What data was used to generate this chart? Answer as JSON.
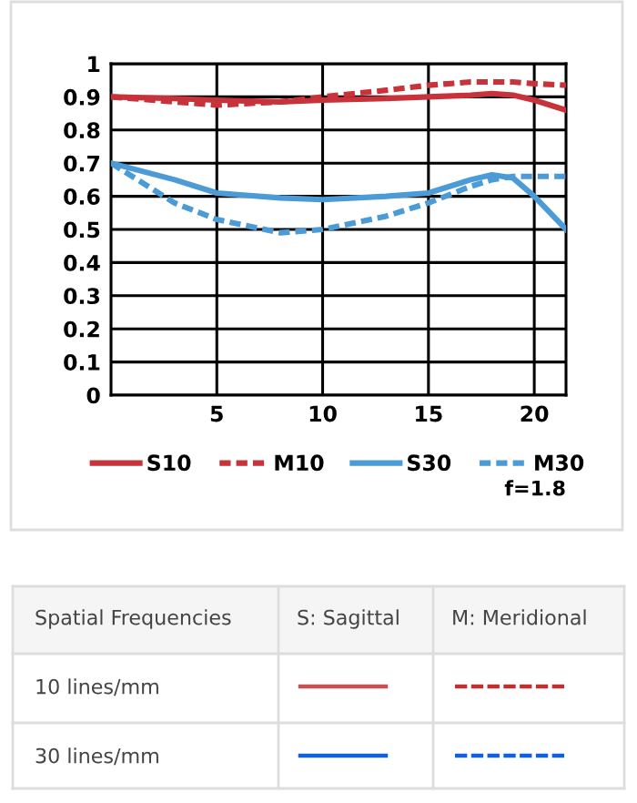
{
  "chart_data": {
    "type": "line",
    "x": [
      0,
      3,
      5,
      8,
      10,
      13,
      15,
      17,
      18,
      19,
      20,
      21.5
    ],
    "series": [
      {
        "name": "S10",
        "color": "#c8323a",
        "line_style": "solid",
        "values": [
          0.9,
          0.895,
          0.89,
          0.885,
          0.89,
          0.895,
          0.9,
          0.905,
          0.91,
          0.905,
          0.89,
          0.86
        ]
      },
      {
        "name": "M10",
        "color": "#c8323a",
        "line_style": "dashed",
        "values": [
          0.9,
          0.885,
          0.875,
          0.885,
          0.9,
          0.92,
          0.935,
          0.945,
          0.945,
          0.945,
          0.94,
          0.935
        ]
      },
      {
        "name": "S30",
        "color": "#4a9bd6",
        "line_style": "solid",
        "values": [
          0.7,
          0.65,
          0.61,
          0.595,
          0.59,
          0.6,
          0.61,
          0.65,
          0.665,
          0.655,
          0.6,
          0.5
        ]
      },
      {
        "name": "M30",
        "color": "#4a9bd6",
        "line_style": "dashed",
        "values": [
          0.7,
          0.58,
          0.53,
          0.49,
          0.5,
          0.54,
          0.58,
          0.63,
          0.65,
          0.66,
          0.66,
          0.66
        ]
      }
    ],
    "xlim": [
      0,
      21.5
    ],
    "xticks": [
      5,
      10,
      15,
      20
    ],
    "ylim": [
      0,
      1
    ],
    "yticks": [
      0,
      0.1,
      0.2,
      0.3,
      0.4,
      0.5,
      0.6,
      0.7,
      0.8,
      0.9,
      1
    ],
    "grid": true,
    "legend": "bottom",
    "annotations": [
      "f=1.8",
      "Spatial Frequencies",
      "S: Sagittal",
      "M: Meridional",
      "10 lines/mm",
      "30 lines/mm"
    ]
  }
}
